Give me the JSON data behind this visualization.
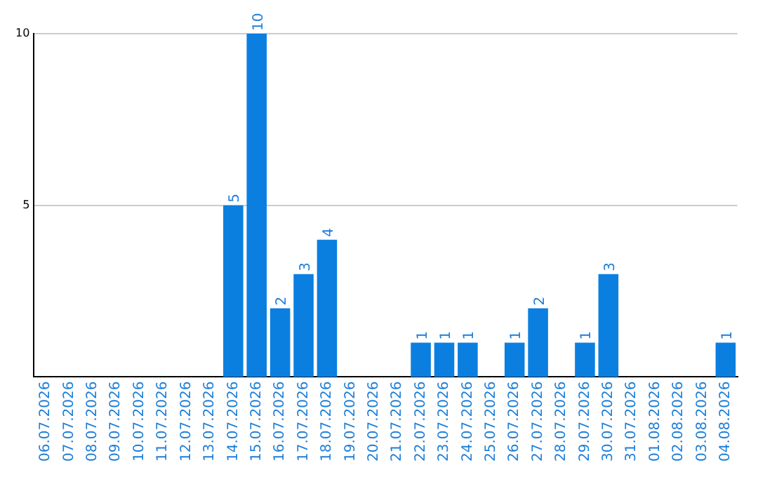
{
  "chart_data": {
    "type": "bar",
    "categories": [
      "06.07.2026",
      "07.07.2026",
      "08.07.2026",
      "09.07.2026",
      "10.07.2026",
      "11.07.2026",
      "12.07.2026",
      "13.07.2026",
      "14.07.2026",
      "15.07.2026",
      "16.07.2026",
      "17.07.2026",
      "18.07.2026",
      "19.07.2026",
      "20.07.2026",
      "21.07.2026",
      "22.07.2026",
      "23.07.2026",
      "24.07.2026",
      "25.07.2026",
      "26.07.2026",
      "27.07.2026",
      "28.07.2026",
      "29.07.2026",
      "30.07.2026",
      "31.07.2026",
      "01.08.2026",
      "02.08.2026",
      "03.08.2026",
      "04.08.2026"
    ],
    "values": [
      0,
      0,
      0,
      0,
      0,
      0,
      0,
      0,
      5,
      10,
      2,
      3,
      4,
      0,
      0,
      0,
      1,
      1,
      1,
      0,
      1,
      2,
      0,
      1,
      3,
      0,
      0,
      0,
      0,
      1
    ],
    "value_labels": [
      null,
      null,
      null,
      null,
      null,
      null,
      null,
      null,
      "5",
      "10",
      "2",
      "3",
      "4",
      null,
      null,
      null,
      "1",
      "1",
      "1",
      null,
      "1",
      "2",
      null,
      "1",
      "3",
      null,
      null,
      null,
      null,
      "1"
    ],
    "color": "#0a7fe0",
    "ylim": [
      0,
      10
    ],
    "yticks": [
      5,
      10
    ],
    "grid": "y",
    "legend": false
  }
}
